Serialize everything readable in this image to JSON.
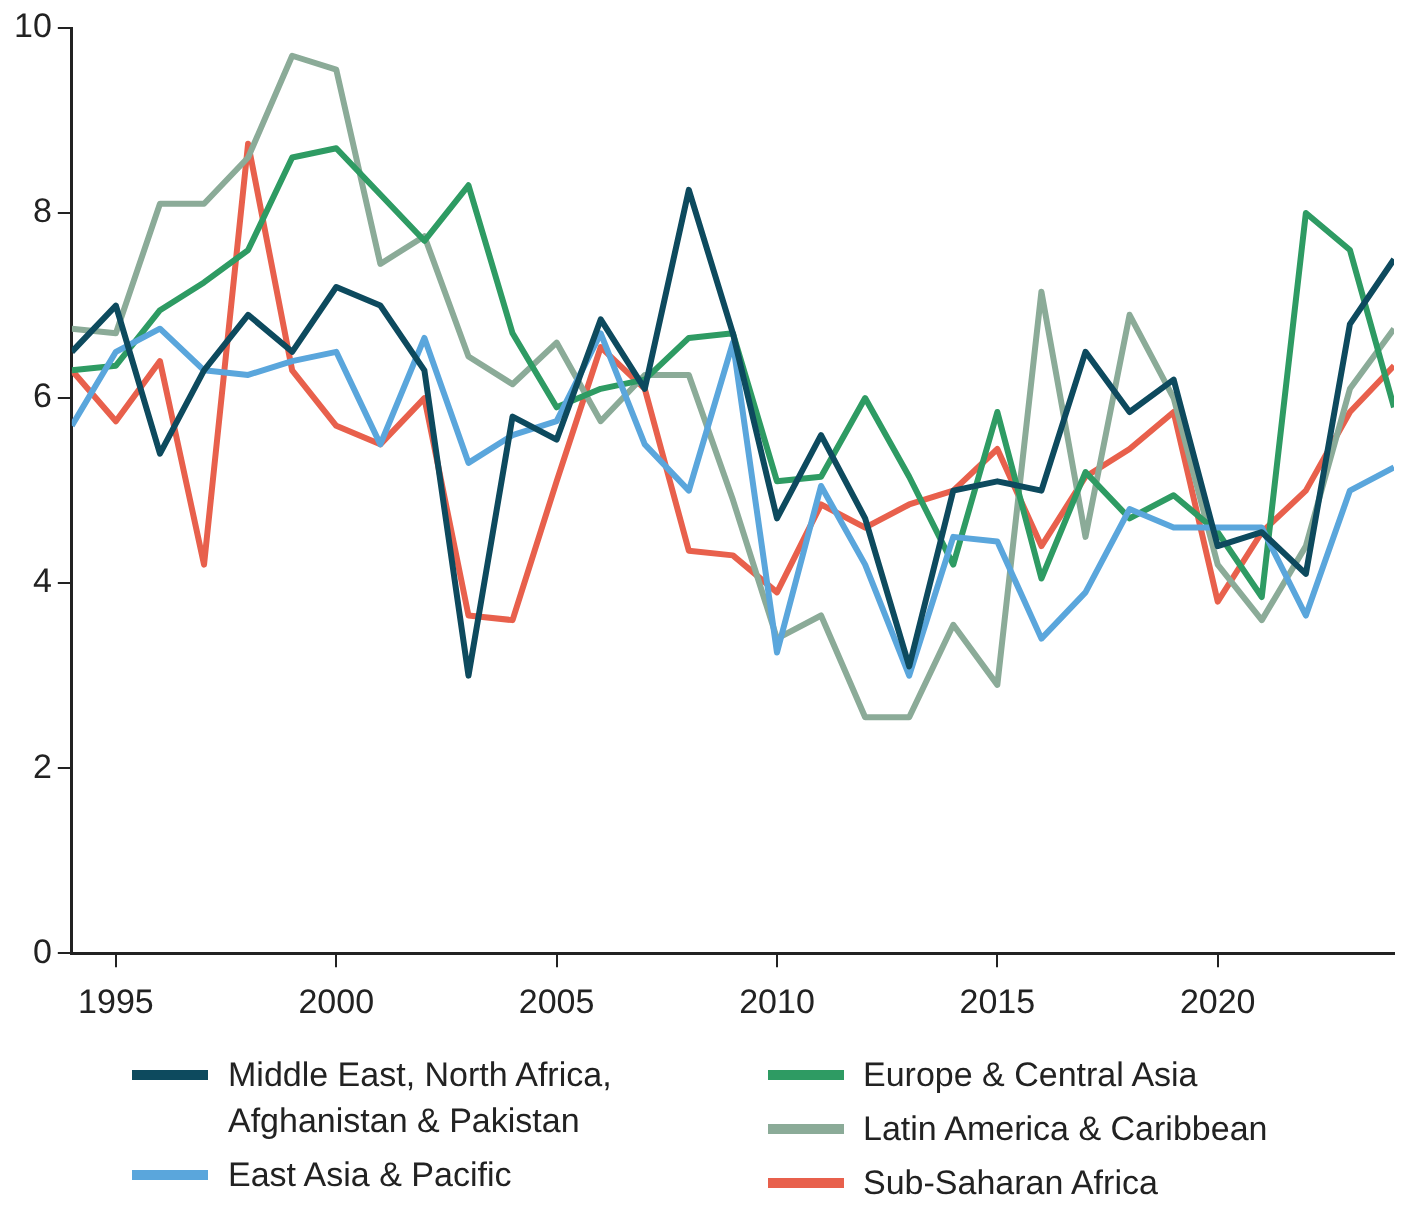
{
  "chart_data": {
    "type": "line",
    "x": [
      1994,
      1995,
      1996,
      1997,
      1998,
      1999,
      2000,
      2001,
      2002,
      2003,
      2004,
      2005,
      2006,
      2007,
      2008,
      2009,
      2010,
      2011,
      2012,
      2013,
      2014,
      2015,
      2016,
      2017,
      2018,
      2019,
      2020,
      2021,
      2022,
      2023,
      2024
    ],
    "series": [
      {
        "name": "Middle East, North Africa, Afghanistan & Pakistan",
        "color": "#0d4a5e",
        "values": [
          6.5,
          7.0,
          5.4,
          6.3,
          6.9,
          6.5,
          7.2,
          7.0,
          6.3,
          3.0,
          5.8,
          5.55,
          6.85,
          6.1,
          8.25,
          6.7,
          4.7,
          5.6,
          4.7,
          3.1,
          5.0,
          5.1,
          5.0,
          6.5,
          5.85,
          6.2,
          4.4,
          4.55,
          4.1,
          6.8,
          7.5
        ]
      },
      {
        "name": "East Asia & Pacific",
        "color": "#5aa6dc",
        "values": [
          5.7,
          6.5,
          6.75,
          6.3,
          6.25,
          6.4,
          6.5,
          5.5,
          6.65,
          5.3,
          5.6,
          5.75,
          6.7,
          5.5,
          5.0,
          6.6,
          3.25,
          5.05,
          4.2,
          3.0,
          4.5,
          4.45,
          3.4,
          3.9,
          4.8,
          4.6,
          4.6,
          4.6,
          3.65,
          5.0,
          5.25
        ]
      },
      {
        "name": "Europe & Central Asia",
        "color": "#2e9b63",
        "values": [
          6.3,
          6.35,
          6.95,
          7.25,
          7.6,
          8.6,
          8.7,
          8.2,
          7.7,
          8.3,
          6.7,
          5.9,
          6.1,
          6.2,
          6.65,
          6.7,
          5.1,
          5.15,
          6.0,
          5.15,
          4.2,
          5.85,
          4.05,
          5.2,
          4.7,
          4.95,
          4.55,
          3.85,
          8.0,
          7.6,
          5.9
        ]
      },
      {
        "name": "Latin America & Caribbean",
        "color": "#8bab98",
        "values": [
          6.75,
          6.7,
          8.1,
          8.1,
          8.6,
          9.7,
          9.55,
          7.45,
          7.75,
          6.45,
          6.15,
          6.6,
          5.75,
          6.25,
          6.25,
          4.9,
          3.4,
          3.65,
          2.55,
          2.55,
          3.55,
          2.9,
          7.15,
          4.5,
          6.9,
          6.0,
          4.2,
          3.6,
          4.4,
          6.1,
          6.75
        ]
      },
      {
        "name": "Sub-Saharan Africa",
        "color": "#e8604c",
        "values": [
          6.3,
          5.75,
          6.4,
          4.2,
          8.75,
          6.3,
          5.7,
          5.5,
          6.0,
          3.65,
          3.6,
          5.1,
          6.55,
          6.1,
          4.35,
          4.3,
          3.9,
          4.85,
          4.6,
          4.85,
          5.0,
          5.45,
          4.4,
          5.15,
          5.45,
          5.85,
          3.8,
          4.55,
          5.0,
          5.85,
          6.35
        ]
      }
    ],
    "xlim": [
      1994,
      2024
    ],
    "xticks": [
      1995,
      2000,
      2005,
      2010,
      2015,
      2020
    ],
    "ylim": [
      0,
      10
    ],
    "yticks": [
      0,
      2,
      4,
      6,
      8,
      10
    ],
    "grid": false,
    "legend": "bottom",
    "marker": "none",
    "line_style": "solid"
  }
}
